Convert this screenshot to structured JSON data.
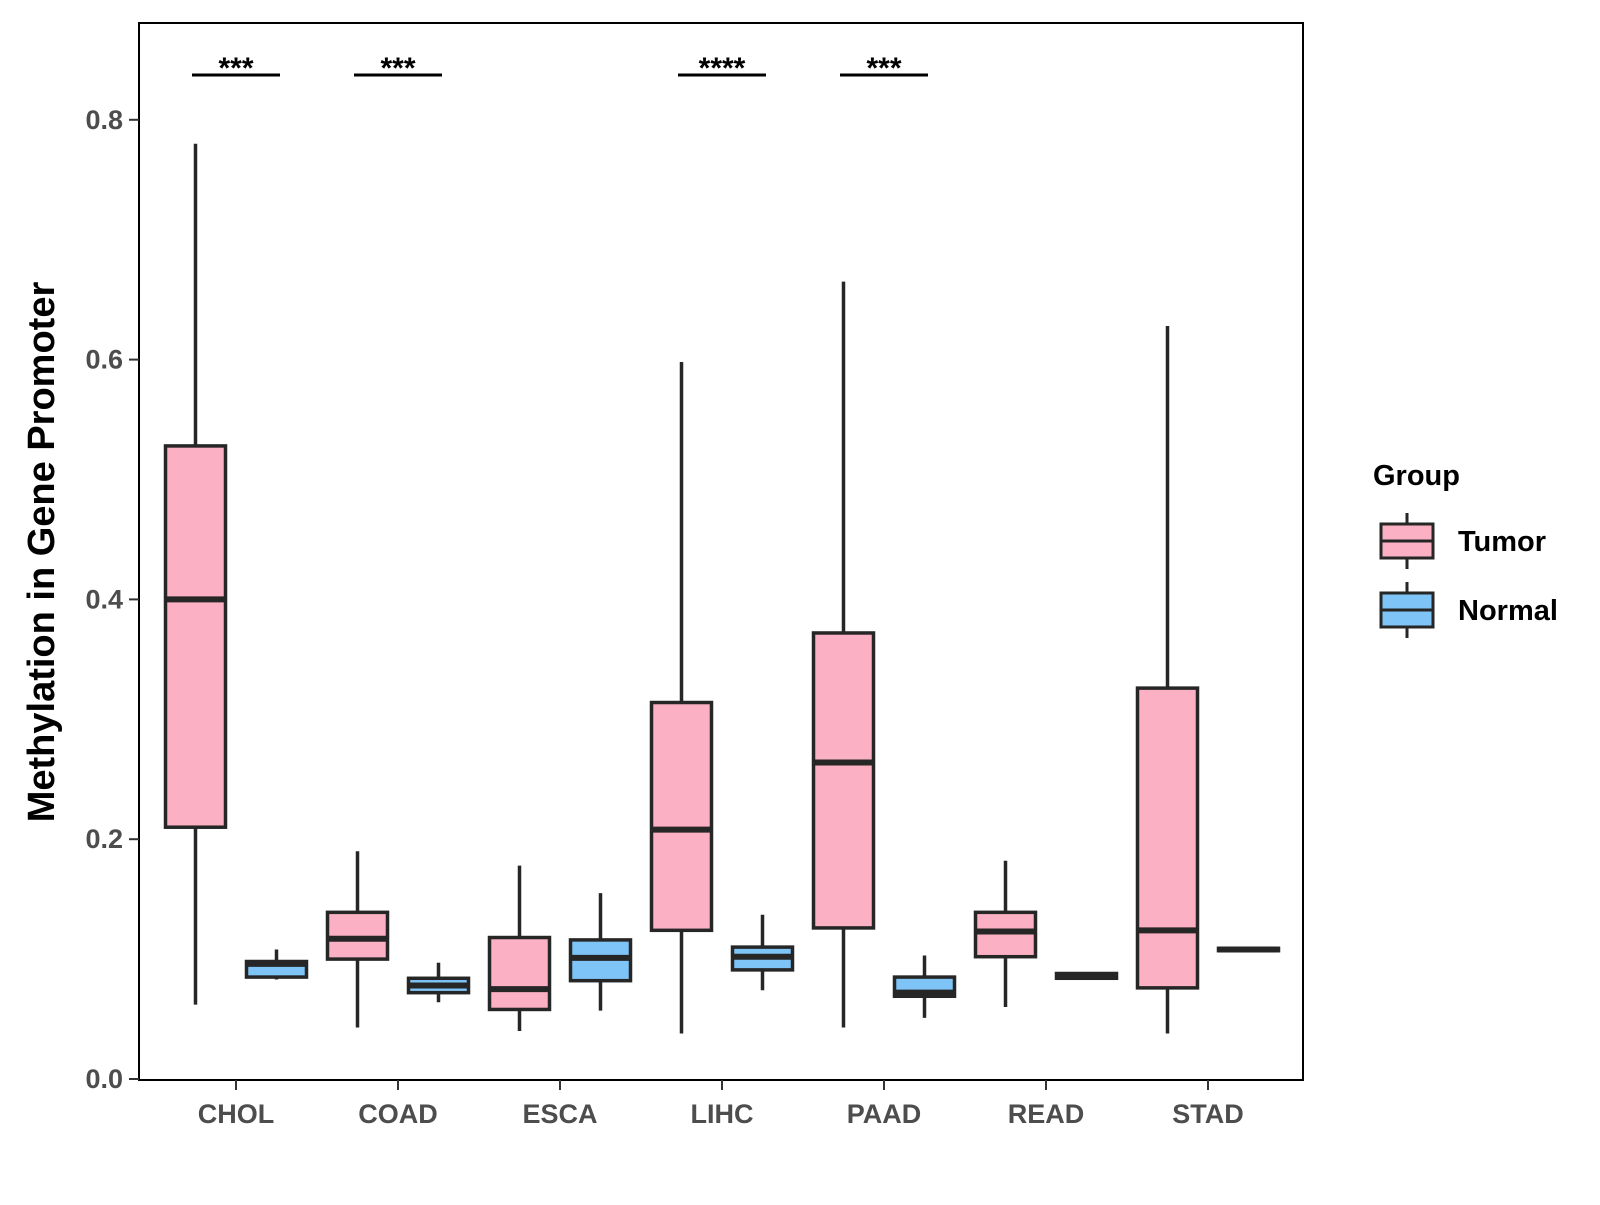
{
  "chart_data": {
    "type": "boxplot",
    "title": "",
    "xlabel": "",
    "ylabel": "Methylation in Gene Promoter",
    "ylim": [
      0,
      0.88
    ],
    "yticks": [
      0.0,
      0.2,
      0.4,
      0.6,
      0.8
    ],
    "ytick_labels": [
      "0.0",
      "0.2",
      "0.4",
      "0.6",
      "0.8"
    ],
    "grid": false,
    "legend": {
      "title": "Group",
      "position": "right",
      "entries": [
        {
          "name": "Tumor",
          "color": "#fbb1c3"
        },
        {
          "name": "Normal",
          "color": "#7ec4f7"
        }
      ]
    },
    "categories": [
      "CHOL",
      "COAD",
      "ESCA",
      "LIHC",
      "PAAD",
      "READ",
      "STAD"
    ],
    "series": [
      {
        "name": "Tumor",
        "color": "#fbb1c3",
        "boxes": [
          {
            "min": 0.062,
            "q1": 0.21,
            "median": 0.4,
            "q3": 0.528,
            "max": 0.78
          },
          {
            "min": 0.043,
            "q1": 0.1,
            "median": 0.117,
            "q3": 0.139,
            "max": 0.19
          },
          {
            "min": 0.04,
            "q1": 0.058,
            "median": 0.075,
            "q3": 0.118,
            "max": 0.178
          },
          {
            "min": 0.038,
            "q1": 0.124,
            "median": 0.208,
            "q3": 0.314,
            "max": 0.598
          },
          {
            "min": 0.043,
            "q1": 0.126,
            "median": 0.264,
            "q3": 0.372,
            "max": 0.665
          },
          {
            "min": 0.06,
            "q1": 0.102,
            "median": 0.123,
            "q3": 0.139,
            "max": 0.182
          },
          {
            "min": 0.038,
            "q1": 0.076,
            "median": 0.124,
            "q3": 0.326,
            "max": 0.628
          }
        ]
      },
      {
        "name": "Normal",
        "color": "#7ec4f7",
        "boxes": [
          {
            "min": 0.083,
            "q1": 0.085,
            "median": 0.096,
            "q3": 0.098,
            "max": 0.108
          },
          {
            "min": 0.064,
            "q1": 0.072,
            "median": 0.078,
            "q3": 0.084,
            "max": 0.097
          },
          {
            "min": 0.057,
            "q1": 0.082,
            "median": 0.101,
            "q3": 0.116,
            "max": 0.155
          },
          {
            "min": 0.074,
            "q1": 0.091,
            "median": 0.102,
            "q3": 0.11,
            "max": 0.137
          },
          {
            "min": 0.051,
            "q1": 0.069,
            "median": 0.072,
            "q3": 0.085,
            "max": 0.103
          },
          {
            "min": 0.083,
            "q1": 0.084,
            "median": 0.086,
            "q3": 0.088,
            "max": 0.089
          },
          {
            "min": 0.107,
            "q1": 0.107,
            "median": 0.108,
            "q3": 0.109,
            "max": 0.11
          }
        ]
      }
    ],
    "annotations": [
      {
        "category": "CHOL",
        "label": "***"
      },
      {
        "category": "COAD",
        "label": "***"
      },
      {
        "category": "LIHC",
        "label": "****"
      },
      {
        "category": "PAAD",
        "label": "***"
      }
    ]
  }
}
